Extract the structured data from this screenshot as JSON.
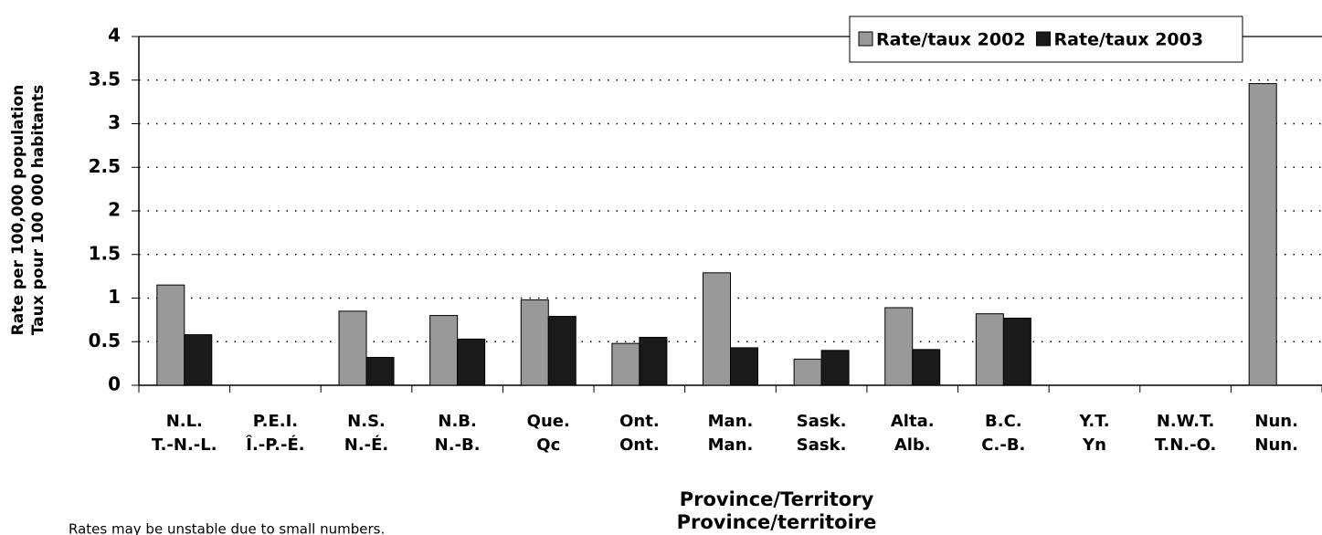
{
  "chart_data": {
    "type": "bar",
    "y_label": [
      "Rate per 100,000 population",
      "Taux pour 100 000 habitants"
    ],
    "x_label": [
      "Province/Territory",
      "Province/territoire"
    ],
    "note": "Rates may be unstable due to small numbers.",
    "categories": [
      [
        "N.L.",
        "T.-N.-L."
      ],
      [
        "P.E.I.",
        "Î.-P.-É."
      ],
      [
        "N.S.",
        "N.-É."
      ],
      [
        "N.B.",
        "N.-B."
      ],
      [
        "Que.",
        "Qc"
      ],
      [
        "Ont.",
        "Ont."
      ],
      [
        "Man.",
        "Man."
      ],
      [
        "Sask.",
        "Sask."
      ],
      [
        "Alta.",
        "Alb."
      ],
      [
        "B.C.",
        "C.-B."
      ],
      [
        "Y.T.",
        "Yn"
      ],
      [
        "N.W.T.",
        "T.N.-O."
      ],
      [
        "Nun.",
        "Nun."
      ]
    ],
    "series": [
      {
        "name": "Rate/taux 2002",
        "color": "#999999",
        "values": [
          1.15,
          0,
          0.85,
          0.8,
          0.98,
          0.48,
          1.29,
          0.3,
          0.89,
          0.82,
          0,
          0,
          3.46
        ]
      },
      {
        "name": "Rate/taux 2003",
        "color": "#1a1a1a",
        "values": [
          0.58,
          0,
          0.32,
          0.53,
          0.79,
          0.55,
          0.43,
          0.4,
          0.41,
          0.77,
          0,
          0,
          0
        ]
      }
    ],
    "ylim": [
      0,
      4
    ],
    "yticks": [
      0,
      0.5,
      1,
      1.5,
      2,
      2.5,
      3,
      3.5,
      4
    ],
    "grid": true,
    "legend": "top-right"
  }
}
